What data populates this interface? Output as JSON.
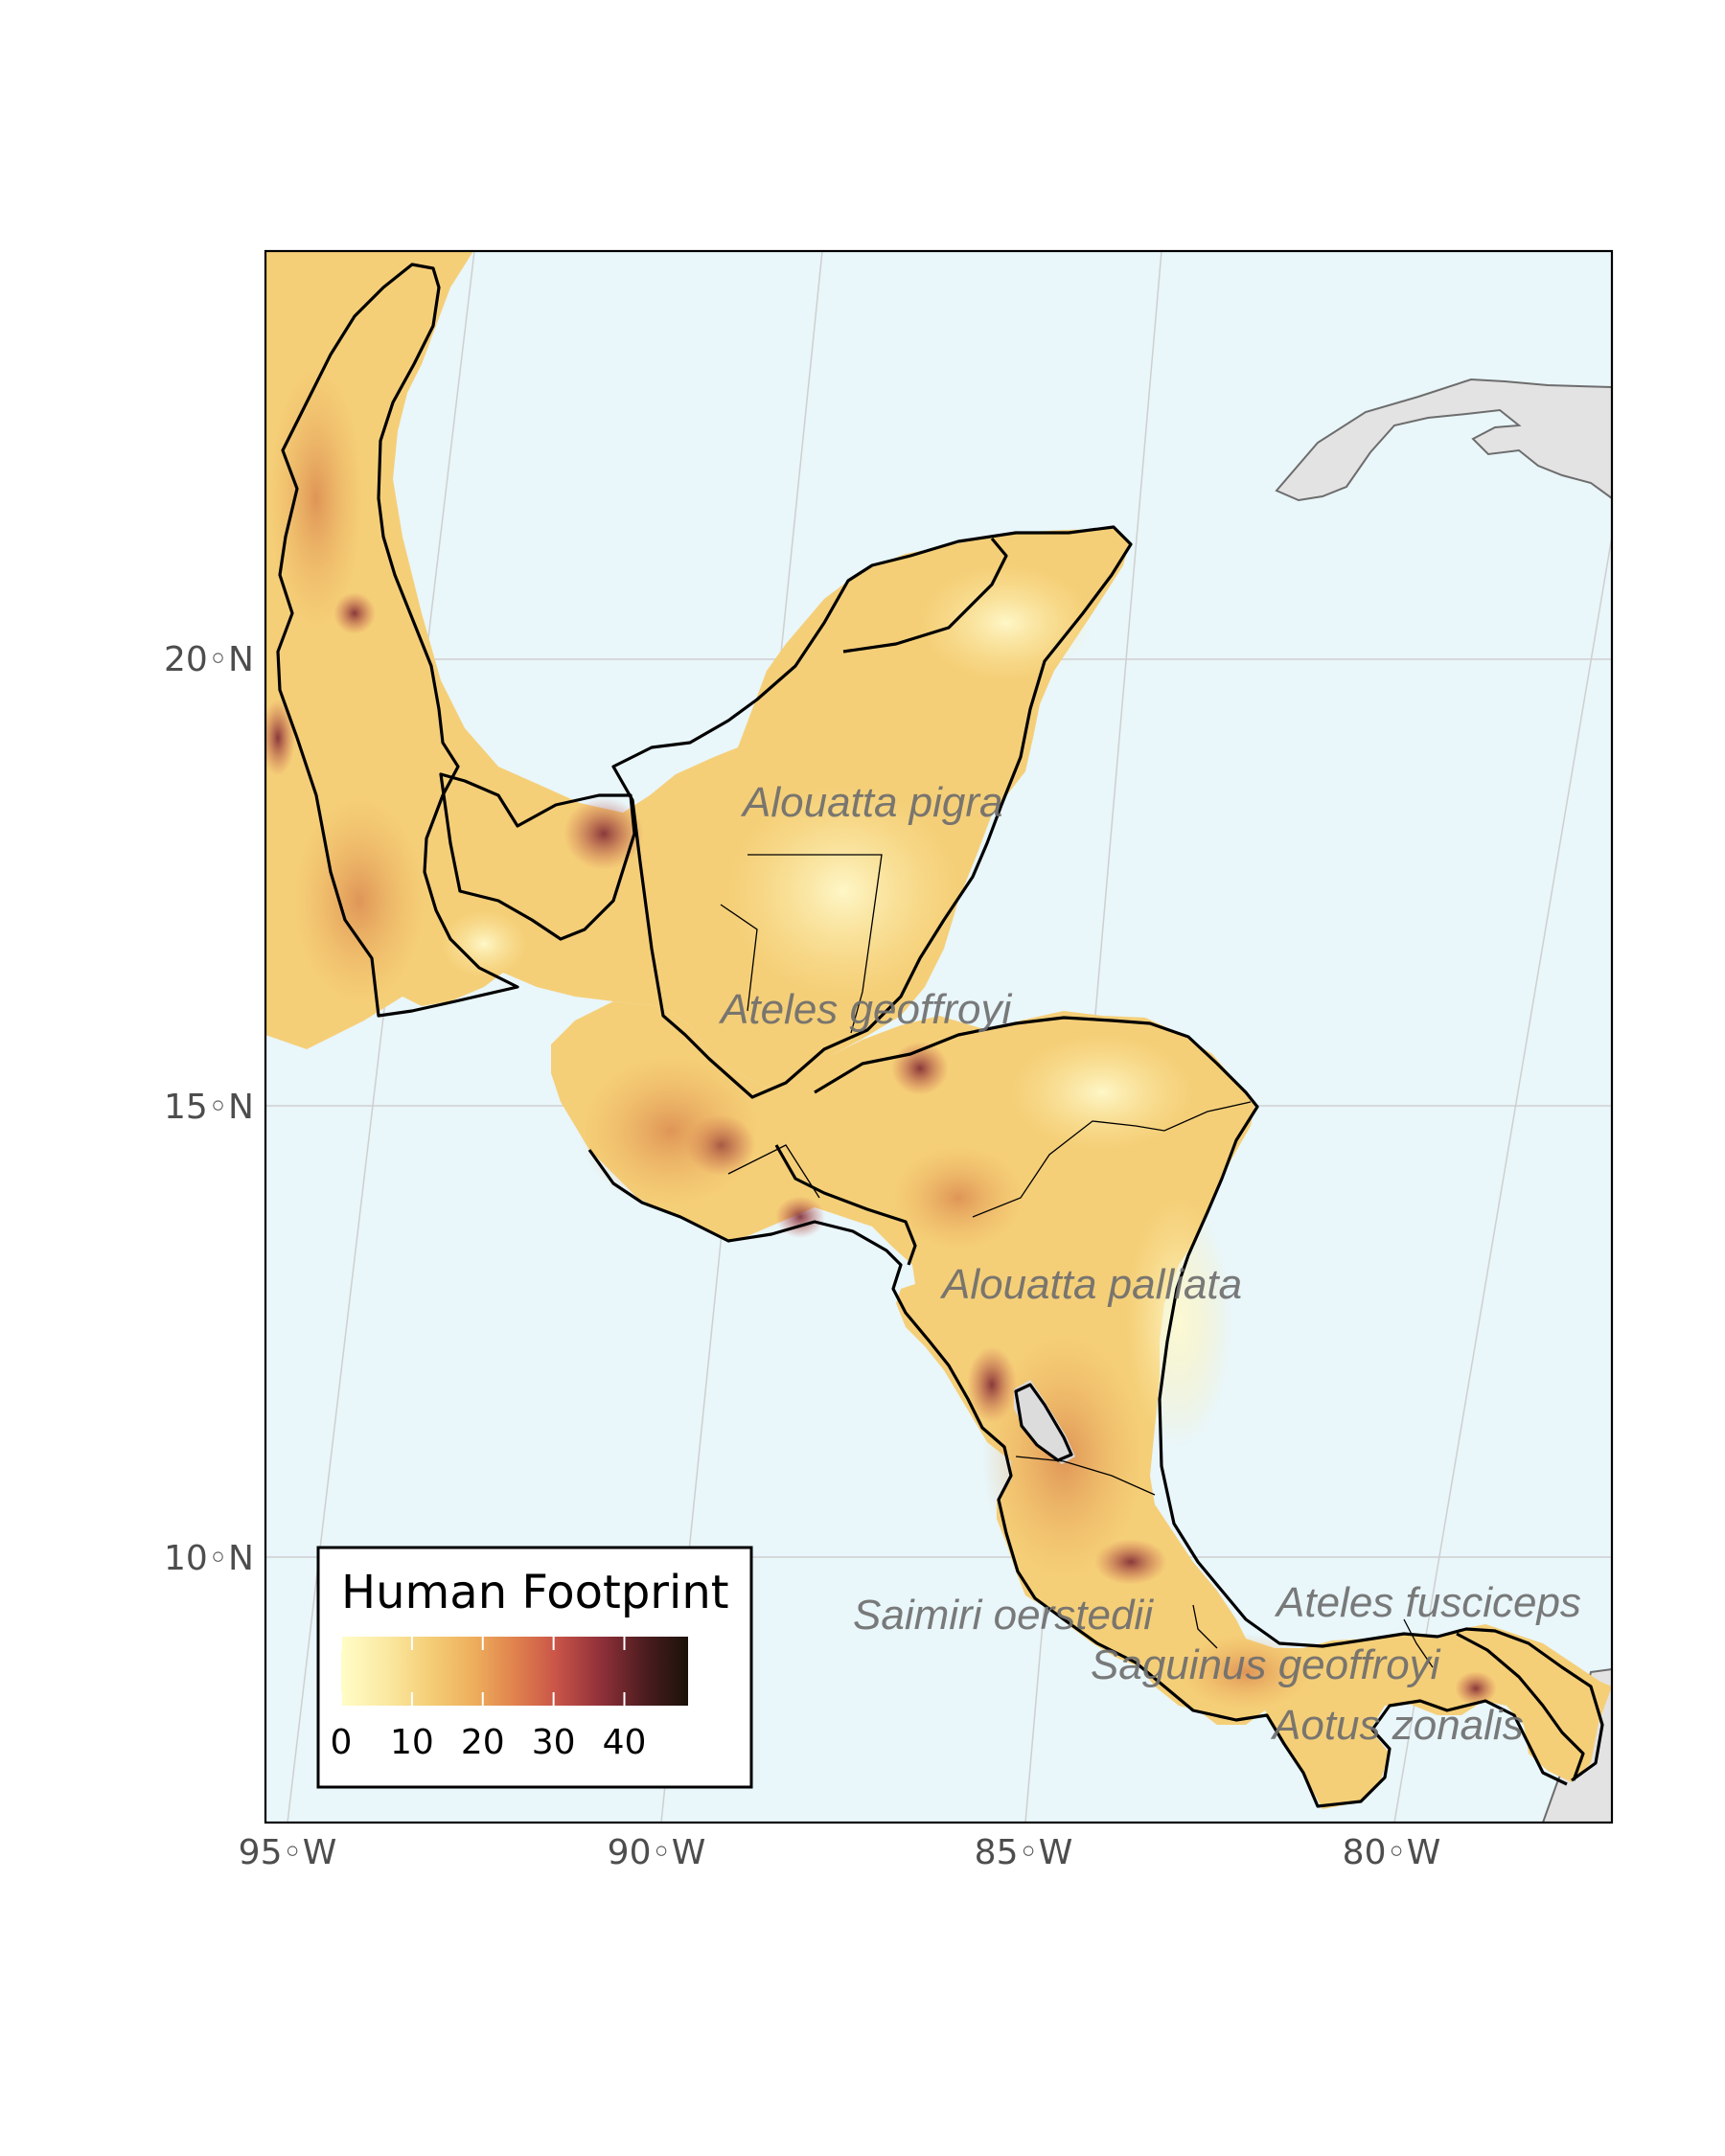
{
  "map": {
    "colors": {
      "ocean": "#e9f6fa",
      "other_land": "#e3e3e3",
      "graticule": "#cfcfcf",
      "frame": "#000000",
      "lake": "#dcdcdc",
      "footprint_scale": [
        "#fffdc7",
        "#fbe9a2",
        "#f5cf78",
        "#eeaf5c",
        "#e0824e",
        "#c95448",
        "#8f3039",
        "#4a1c1e",
        "#1a120a"
      ]
    },
    "axes": {
      "x_labels": [
        "95◦W",
        "90◦W",
        "85◦W",
        "80◦W"
      ],
      "y_labels": [
        "20◦N",
        "15◦N",
        "10◦N"
      ]
    },
    "species": [
      "Alouatta pigra",
      "Ateles geoffroyi",
      "Alouatta palliata",
      "Ateles fusciceps",
      "Saimiri oerstedii",
      "Saguinus geoffroyi",
      "Aotus zonalis"
    ]
  },
  "legend": {
    "title": "Human Footprint",
    "ticks": [
      "0",
      "10",
      "20",
      "30",
      "40"
    ],
    "range": [
      0,
      49
    ]
  }
}
